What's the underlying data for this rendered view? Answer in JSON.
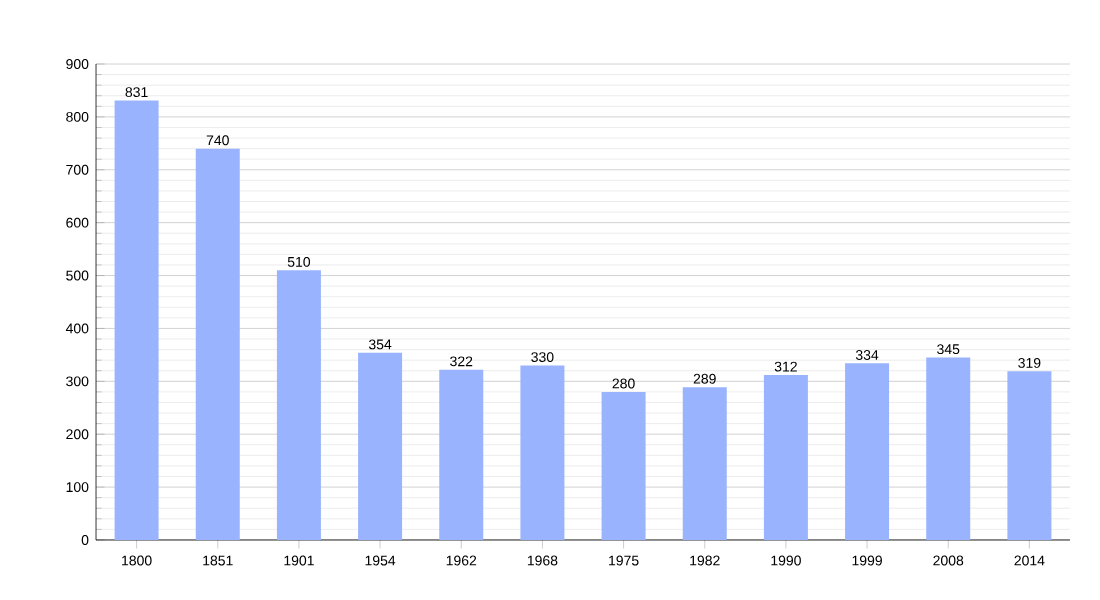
{
  "chart_data": {
    "type": "bar",
    "categories": [
      "1800",
      "1851",
      "1901",
      "1954",
      "1962",
      "1968",
      "1975",
      "1982",
      "1990",
      "1999",
      "2008",
      "2014"
    ],
    "values": [
      831,
      740,
      510,
      354,
      322,
      330,
      280,
      289,
      312,
      334,
      345,
      319
    ],
    "color": "#99b3ff",
    "ylim": [
      0,
      900
    ],
    "yticks": [
      0,
      100,
      200,
      300,
      400,
      500,
      600,
      700,
      800,
      900
    ],
    "grid": "y",
    "data_labels": true
  }
}
